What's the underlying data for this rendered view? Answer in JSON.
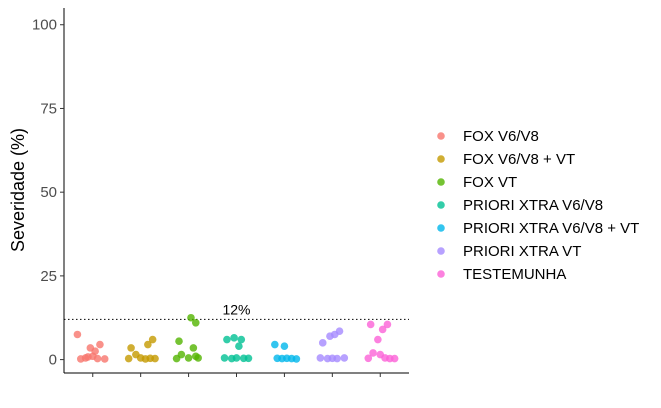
{
  "chart_data": {
    "type": "scatter",
    "title": "",
    "xlabel": "",
    "ylabel": "Severidade (%)",
    "ylim": [
      -4,
      105
    ],
    "yticks": [
      0,
      25,
      50,
      75,
      100
    ],
    "grid": false,
    "legend_position": "right",
    "categories": [
      "FOX V6/V8",
      "FOX V6/V8 + VT",
      "FOX VT",
      "PRIORI XTRA V6/V8",
      "PRIORI XTRA V6/V8 + VT",
      "PRIORI XTRA VT",
      "TESTEMUNHA"
    ],
    "reference_line": {
      "y": 12,
      "label": "12%",
      "style": "dotted"
    },
    "series": [
      {
        "name": "FOX V6/V8",
        "color": "#F8766D",
        "points": [
          [
            -0.32,
            7.5
          ],
          [
            -0.15,
            0.5
          ],
          [
            -0.05,
            3.5
          ],
          [
            0.05,
            2.5
          ],
          [
            0.15,
            4.5
          ],
          [
            0.25,
            0.2
          ],
          [
            -0.25,
            0.2
          ],
          [
            0.1,
            0.3
          ],
          [
            0.0,
            1.0
          ],
          [
            -0.1,
            0.8
          ]
        ]
      },
      {
        "name": "FOX V6/V8 + VT",
        "color": "#C49A00",
        "points": [
          [
            -0.2,
            3.5
          ],
          [
            -0.1,
            1.5
          ],
          [
            0.15,
            4.5
          ],
          [
            0.25,
            6.0
          ],
          [
            -0.25,
            0.3
          ],
          [
            0.0,
            0.5
          ],
          [
            0.1,
            0.2
          ],
          [
            0.2,
            0.4
          ],
          [
            0.3,
            0.3
          ]
        ]
      },
      {
        "name": "FOX VT",
        "color": "#53B400",
        "points": [
          [
            -0.2,
            5.5
          ],
          [
            0.05,
            12.5
          ],
          [
            0.15,
            11.0
          ],
          [
            0.1,
            3.5
          ],
          [
            -0.15,
            1.5
          ],
          [
            0.0,
            0.5
          ],
          [
            -0.25,
            0.3
          ],
          [
            0.2,
            0.5
          ],
          [
            0.15,
            1.0
          ]
        ]
      },
      {
        "name": "PRIORI XTRA V6/V8",
        "color": "#00C094",
        "points": [
          [
            -0.2,
            6.0
          ],
          [
            -0.05,
            6.5
          ],
          [
            0.1,
            6.0
          ],
          [
            0.05,
            4.0
          ],
          [
            -0.25,
            0.5
          ],
          [
            -0.1,
            0.3
          ],
          [
            0.0,
            0.5
          ],
          [
            0.15,
            0.4
          ],
          [
            0.25,
            0.4
          ]
        ]
      },
      {
        "name": "PRIORI XTRA V6/V8 + VT",
        "color": "#00B6EB",
        "points": [
          [
            -0.2,
            4.5
          ],
          [
            0.0,
            4.0
          ],
          [
            -0.15,
            0.4
          ],
          [
            -0.05,
            0.3
          ],
          [
            0.05,
            0.4
          ],
          [
            0.15,
            0.3
          ],
          [
            0.25,
            0.2
          ]
        ]
      },
      {
        "name": "PRIORI XTRA VT",
        "color": "#A58AFF",
        "points": [
          [
            -0.2,
            5.0
          ],
          [
            -0.05,
            7.0
          ],
          [
            0.05,
            7.5
          ],
          [
            0.15,
            8.5
          ],
          [
            -0.25,
            0.5
          ],
          [
            -0.1,
            0.3
          ],
          [
            0.0,
            0.4
          ],
          [
            0.1,
            0.3
          ],
          [
            0.25,
            0.5
          ]
        ]
      },
      {
        "name": "TESTEMUNHA",
        "color": "#FB61D7",
        "points": [
          [
            -0.2,
            10.5
          ],
          [
            0.05,
            9.0
          ],
          [
            0.15,
            10.5
          ],
          [
            -0.05,
            6.0
          ],
          [
            -0.15,
            2.0
          ],
          [
            0.0,
            1.5
          ],
          [
            0.1,
            0.5
          ],
          [
            -0.25,
            0.4
          ],
          [
            0.2,
            0.3
          ],
          [
            0.3,
            0.3
          ]
        ]
      }
    ]
  }
}
